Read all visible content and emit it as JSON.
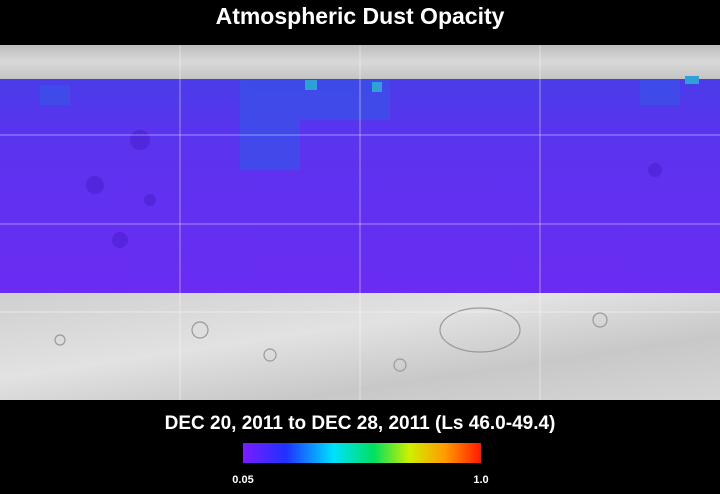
{
  "title": "Atmospheric Dust Opacity",
  "date_range": "DEC 20, 2011 to DEC 28, 2011 (Ls 46.0-49.4)",
  "colorbar": {
    "min_label": "0.05",
    "max_label": "1.0"
  }
}
